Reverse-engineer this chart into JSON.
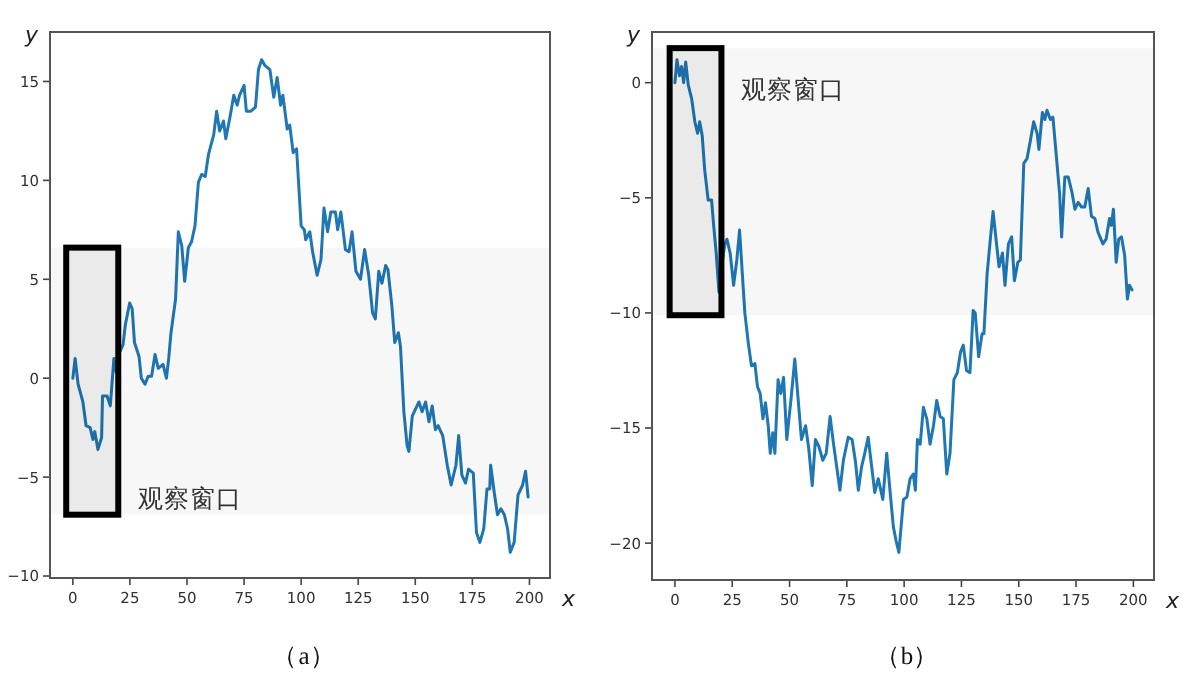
{
  "chart_data": [
    {
      "type": "line",
      "xlabel": "x",
      "ylabel": "y",
      "xlim": [
        -10,
        209
      ],
      "ylim": [
        -10.1,
        17.5
      ],
      "xticks": [
        0,
        25,
        50,
        75,
        100,
        125,
        150,
        175,
        200
      ],
      "yticks": [
        -10,
        -5,
        0,
        5,
        10,
        15
      ],
      "grid": false,
      "x": [
        0,
        1,
        2.3,
        4.4,
        5.8,
        7.6,
        8.8,
        9.6,
        11,
        12.6,
        13,
        15,
        16.4,
        18,
        19,
        20.5,
        22,
        23,
        24.9,
        26,
        27,
        29,
        30,
        31.6,
        33,
        34.5,
        36,
        37.4,
        39.5,
        41,
        42,
        43,
        45,
        46.2,
        47.7,
        49,
        50.6,
        52,
        53.5,
        55,
        56.4,
        58,
        59.4,
        61.7,
        63,
        64.3,
        66,
        67,
        69,
        70.5,
        72,
        73,
        75,
        76,
        78,
        80,
        81.3,
        82.7,
        84.2,
        86.3,
        88,
        89.5,
        91,
        92,
        93.9,
        95,
        96.5,
        98,
        100,
        101.4,
        102,
        103.8,
        105,
        107,
        108.7,
        110,
        111.6,
        113,
        115,
        116,
        117.4,
        119.4,
        121,
        122.3,
        124,
        126,
        127.8,
        129.6,
        131.3,
        132.5,
        134,
        135.4,
        137,
        138,
        139.7,
        141,
        142.6,
        143.5,
        145,
        146.4,
        147.2,
        148.7,
        151.6,
        153,
        154.5,
        156,
        157.4,
        158.8,
        160,
        162,
        164,
        165.7,
        167.8,
        169,
        170.4,
        172,
        173.3,
        175.4,
        176.8,
        178.3,
        180,
        181.4,
        182.6,
        183,
        184.6,
        186,
        187.5,
        189,
        190.4,
        191.6,
        193.3,
        195,
        197,
        198.3,
        199.4
      ],
      "series": [
        {
          "color": "#1f77b4",
          "values": [
            0,
            1,
            -0.3,
            -1.2,
            -2.4,
            -2.5,
            -3.1,
            -2.7,
            -3.6,
            -3.0,
            -0.9,
            -0.9,
            -1.4,
            1.0,
            0.3,
            1.3,
            1.7,
            2.7,
            3.8,
            3.5,
            1.8,
            1.1,
            0,
            -0.3,
            0.1,
            0.1,
            1.2,
            0.5,
            0.7,
            0,
            1.0,
            2.3,
            4.0,
            7.4,
            6.7,
            4.9,
            6.6,
            6.9,
            7.7,
            9.9,
            10.3,
            10.2,
            11.3,
            12.3,
            13.5,
            12.5,
            13.0,
            12.1,
            13.3,
            14.3,
            13.8,
            14.3,
            14.8,
            13.5,
            13.5,
            13.7,
            15.6,
            16.1,
            15.8,
            15.6,
            14.2,
            15.2,
            13.8,
            14.3,
            12.6,
            12.8,
            11.4,
            11.6,
            7.7,
            7.5,
            7.0,
            7.4,
            6.4,
            5.2,
            6.0,
            8.6,
            7.4,
            8.4,
            8.4,
            7.5,
            8.4,
            6.5,
            6.4,
            7.4,
            5.4,
            5.0,
            6.5,
            5.2,
            3.3,
            3.0,
            5.4,
            4.8,
            5.7,
            5.5,
            3.7,
            1.8,
            2.3,
            1.6,
            -1.7,
            -3.4,
            -3.7,
            -1.9,
            -1.2,
            -1.7,
            -1.2,
            -2.2,
            -1.4,
            -2.6,
            -2.4,
            -2.9,
            -4.4,
            -5.4,
            -4.4,
            -2.9,
            -4.9,
            -5.3,
            -4.6,
            -4.8,
            -7.8,
            -8.3,
            -7.6,
            -5.6,
            -5.6,
            -4.4,
            -5.8,
            -6.9,
            -6.6,
            -6.9,
            -7.6,
            -8.8,
            -8.3,
            -5.9,
            -5.4,
            -4.7,
            -6.0
          ]
        }
      ],
      "bands": [
        {
          "axis": "x",
          "from": -2.9,
          "to": 19.9,
          "color": "#000000"
        },
        {
          "axis": "y",
          "from": -6.9,
          "to": 6.6,
          "color": "#000000"
        }
      ],
      "annotations": [
        "观察窗口",
        "（a）"
      ]
    },
    {
      "type": "line",
      "xlabel": "x",
      "ylabel": "y",
      "xlim": [
        -10,
        209
      ],
      "ylim": [
        -21.6,
        2.2
      ],
      "xticks": [
        0,
        25,
        50,
        75,
        100,
        125,
        150,
        175,
        200
      ],
      "yticks": [
        -20,
        -15,
        -10,
        -5,
        0
      ],
      "grid": false,
      "x": [
        0,
        0.9,
        2,
        2.9,
        3.8,
        4.7,
        5.8,
        7.3,
        8.7,
        9.9,
        10.8,
        11.9,
        13,
        14.5,
        16,
        16.9,
        18,
        19.2,
        20.3,
        21.8,
        22.7,
        24.1,
        25.6,
        27,
        28.2,
        29.4,
        30.5,
        32,
        33.4,
        34.9,
        36,
        37.2,
        38.4,
        39.5,
        40.7,
        41.6,
        42.7,
        43.6,
        45,
        46.2,
        47.4,
        48.8,
        50.6,
        52.3,
        53.8,
        55.2,
        57,
        58.4,
        59.9,
        61.3,
        62.8,
        64.5,
        66,
        67.7,
        69.2,
        70.6,
        72,
        73.5,
        75.6,
        77.3,
        78.8,
        80,
        81.4,
        82.8,
        84.3,
        85.5,
        87.2,
        88.7,
        90.7,
        92.4,
        93.9,
        95.3,
        96.5,
        97.7,
        99.7,
        101.2,
        102.6,
        104,
        104.9,
        105.8,
        107,
        108.4,
        109.9,
        111.3,
        112.8,
        114.2,
        115.7,
        117.1,
        118.6,
        120,
        121.7,
        123.2,
        124.6,
        125.8,
        127.2,
        128.7,
        130.1,
        131,
        132.5,
        134,
        134.8,
        136.2,
        137.7,
        138.8,
        140.3,
        141.4,
        142.9,
        144,
        145.5,
        146.9,
        148.1,
        149.6,
        150.7,
        152.2,
        153.6,
        155.1,
        156.5,
        158,
        158.8,
        160.3,
        161.4,
        162.3,
        163.8,
        164.9,
        166.4,
        167.8,
        168.7,
        170.1,
        171.6,
        173.3,
        174.5,
        175.9,
        177.4,
        178.8,
        180.3,
        181.7,
        183.2,
        184.6,
        186.7,
        188.1,
        189.6,
        190.4,
        191.3,
        192.5,
        193.6,
        194.8,
        196.2,
        197.4,
        198.3,
        199.4
      ],
      "series": [
        {
          "color": "#1f77b4",
          "values": [
            0,
            1.0,
            0.3,
            0.7,
            0,
            0.9,
            -0.1,
            -0.7,
            -1.7,
            -2.2,
            -1.7,
            -2.3,
            -3.8,
            -5.1,
            -5.1,
            -6.2,
            -7.4,
            -9.1,
            -8.0,
            -7.0,
            -6.8,
            -7.4,
            -8.8,
            -7.7,
            -6.4,
            -8.3,
            -10.0,
            -11.3,
            -12.3,
            -12.2,
            -13.2,
            -13.5,
            -14.6,
            -13.9,
            -14.9,
            -16.1,
            -15.2,
            -16.1,
            -12.9,
            -13.5,
            -12.8,
            -15.5,
            -13.8,
            -12.0,
            -13.8,
            -15.5,
            -14.9,
            -15.9,
            -17.5,
            -15.5,
            -15.8,
            -16.4,
            -16.1,
            -14.5,
            -15.7,
            -16.7,
            -17.7,
            -16.4,
            -15.4,
            -15.5,
            -16.5,
            -17.7,
            -16.7,
            -16.1,
            -15.4,
            -16.4,
            -17.8,
            -17.2,
            -18.1,
            -16.1,
            -17.8,
            -19.3,
            -19.9,
            -20.4,
            -18.1,
            -18.0,
            -17.2,
            -17.0,
            -17.7,
            -15.5,
            -15.7,
            -14.1,
            -14.6,
            -15.7,
            -14.9,
            -13.8,
            -14.5,
            -14.6,
            -17.0,
            -16.1,
            -12.9,
            -12.6,
            -11.7,
            -11.4,
            -12.5,
            -12.6,
            -9.9,
            -10.0,
            -11.9,
            -10.9,
            -10.9,
            -8.3,
            -6.7,
            -5.6,
            -7.0,
            -8.0,
            -7.4,
            -8.8,
            -7.0,
            -6.7,
            -8.6,
            -7.8,
            -7.7,
            -3.5,
            -3.3,
            -2.5,
            -1.7,
            -2.2,
            -2.9,
            -1.3,
            -1.6,
            -1.2,
            -1.6,
            -1.5,
            -3.2,
            -4.8,
            -6.7,
            -4.1,
            -4.1,
            -4.8,
            -5.5,
            -5.2,
            -5.4,
            -5.4,
            -4.6,
            -5.8,
            -5.9,
            -6.5,
            -7.0,
            -6.8,
            -5.9,
            -6.2,
            -5.5,
            -7.8,
            -6.8,
            -6.7,
            -7.5,
            -9.4,
            -8.8,
            -9.0
          ]
        }
      ],
      "bands": [
        {
          "axis": "x",
          "from": -2.3,
          "to": 20.3,
          "color": "#000000"
        },
        {
          "axis": "y",
          "from": -10.1,
          "to": 1.5,
          "color": "#000000"
        }
      ],
      "annotations": [
        "观察窗口",
        "（b）"
      ]
    }
  ]
}
